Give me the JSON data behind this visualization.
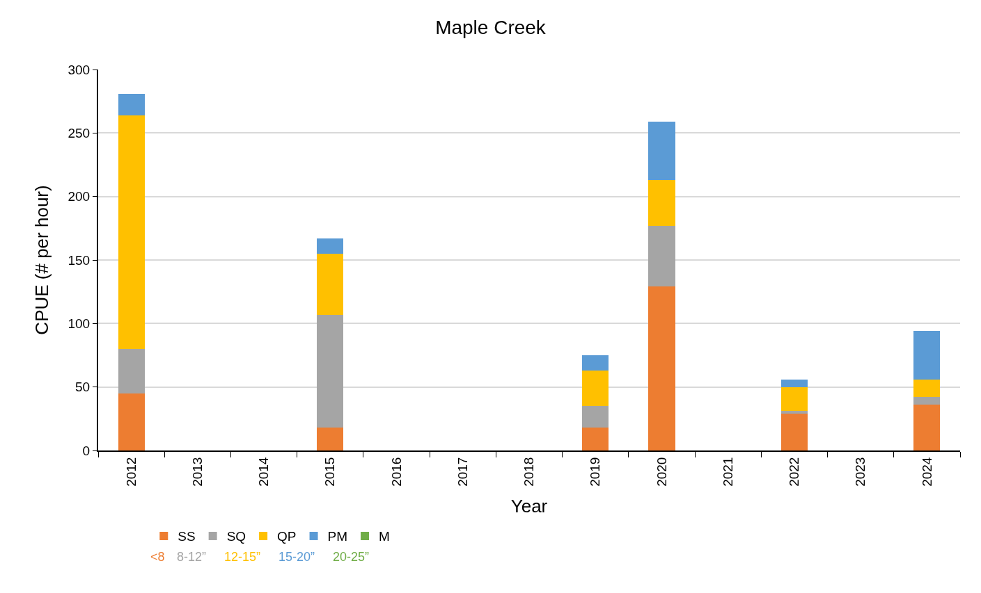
{
  "chart_data": {
    "type": "bar",
    "title": "Maple Creek",
    "xlabel": "Year",
    "ylabel": "CPUE (# per hour)",
    "stacked": true,
    "categories": [
      "2012",
      "2013",
      "2014",
      "2015",
      "2016",
      "2017",
      "2018",
      "2019",
      "2020",
      "2021",
      "2022",
      "2023",
      "2024"
    ],
    "series": [
      {
        "name": "SS",
        "color": "#ed7d31",
        "values": [
          45,
          null,
          null,
          18,
          null,
          null,
          null,
          18,
          129,
          null,
          29,
          null,
          36
        ]
      },
      {
        "name": "SQ",
        "color": "#a5a5a5",
        "values": [
          35,
          null,
          null,
          89,
          null,
          null,
          null,
          17,
          48,
          null,
          2,
          null,
          6
        ]
      },
      {
        "name": "QP",
        "color": "#ffc000",
        "values": [
          184,
          null,
          null,
          48,
          null,
          null,
          null,
          28,
          36,
          null,
          19,
          null,
          14
        ]
      },
      {
        "name": "PM",
        "color": "#5b9bd5",
        "values": [
          17,
          null,
          null,
          12,
          null,
          null,
          null,
          12,
          46,
          null,
          6,
          null,
          38
        ]
      },
      {
        "name": "M",
        "color": "#70ad47",
        "values": [
          null,
          null,
          null,
          null,
          null,
          null,
          null,
          null,
          null,
          null,
          null,
          null,
          null
        ]
      }
    ],
    "ylim": [
      0,
      300
    ],
    "yticks": [
      0,
      50,
      100,
      150,
      200,
      250,
      300
    ],
    "grid": "y",
    "legend": "bottom left",
    "annotations": [
      "<8",
      "8-12”",
      "12-15”",
      "15-20”",
      "20-25”"
    ]
  }
}
